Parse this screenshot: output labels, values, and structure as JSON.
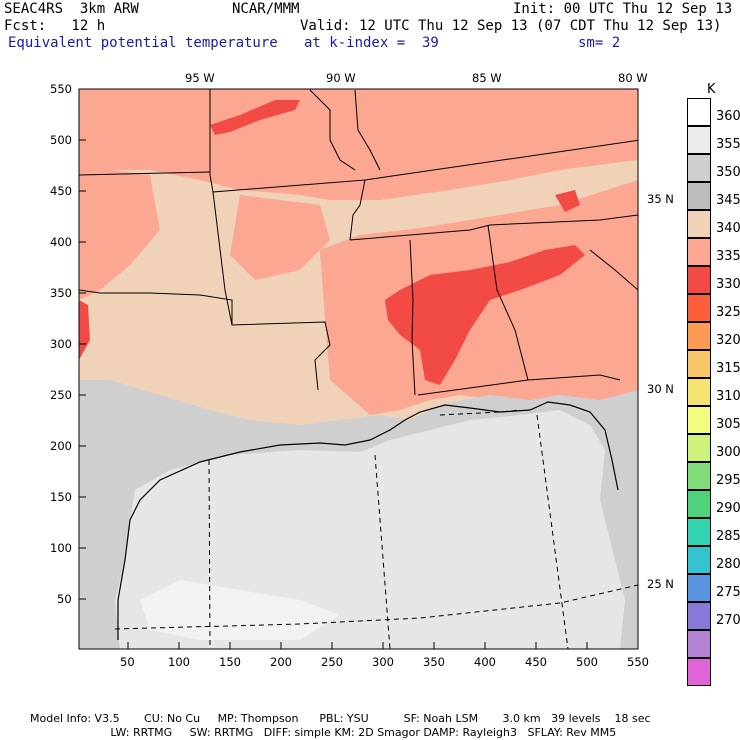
{
  "header": {
    "model": "SEAC4RS  3km ARW",
    "org": "NCAR/MMM",
    "init": "Init: 00 UTC Thu 12 Sep 13",
    "fcst": "Fcst:   12 h",
    "valid": "Valid: 12 UTC Thu 12 Sep 13 (07 CDT Thu 12 Sep 13)",
    "field": "Equivalent potential temperature",
    "level": "at k-index =  39",
    "smooth": "sm= 2"
  },
  "x_ticks": [
    "50",
    "100",
    "150",
    "200",
    "250",
    "300",
    "350",
    "400",
    "450",
    "500",
    "550"
  ],
  "y_ticks": [
    "550",
    "500",
    "450",
    "400",
    "350",
    "300",
    "250",
    "200",
    "150",
    "100",
    "50"
  ],
  "lon_labels": [
    "95 W",
    "90 W",
    "85 W",
    "80 W"
  ],
  "lat_labels": [
    "35 N",
    "30 N",
    "25 N"
  ],
  "colorbar": {
    "unit": "K",
    "levels": [
      {
        "label": "360",
        "color": "#ffffff"
      },
      {
        "label": "355",
        "color": "#ececec"
      },
      {
        "label": "350",
        "color": "#cfcfcf"
      },
      {
        "label": "345",
        "color": "#bdbdbd"
      },
      {
        "label": "340",
        "color": "#f0d2b9"
      },
      {
        "label": "335",
        "color": "#fba791"
      },
      {
        "label": "330",
        "color": "#f24a44"
      },
      {
        "label": "325",
        "color": "#ff5e3a"
      },
      {
        "label": "320",
        "color": "#ff9a52"
      },
      {
        "label": "315",
        "color": "#f9c66a"
      },
      {
        "label": "310",
        "color": "#f5e472"
      },
      {
        "label": "305",
        "color": "#f2fc7e"
      },
      {
        "label": "300",
        "color": "#cdf37a"
      },
      {
        "label": "295",
        "color": "#80dc78"
      },
      {
        "label": "290",
        "color": "#4ed27c"
      },
      {
        "label": "285",
        "color": "#32d4b0"
      },
      {
        "label": "280",
        "color": "#34c4cf"
      },
      {
        "label": "275",
        "color": "#5a96e0"
      },
      {
        "label": "270",
        "color": "#8a78d8"
      },
      {
        "label": "",
        "color": "#b482d2"
      },
      {
        "label": "",
        "color": "#e064d8"
      }
    ]
  },
  "footer": {
    "line1": "Model Info: V3.5       CU: No Cu     MP: Thompson      PBL: YSU          SF: Noah LSM       3.0 km   39 levels    18 sec",
    "line2": "                       LW: RRTMG     SW: RRTMG   DIFF: simple KM: 2D Smagor DAMP: Rayleigh3   SFLAY: Rev MM5"
  }
}
